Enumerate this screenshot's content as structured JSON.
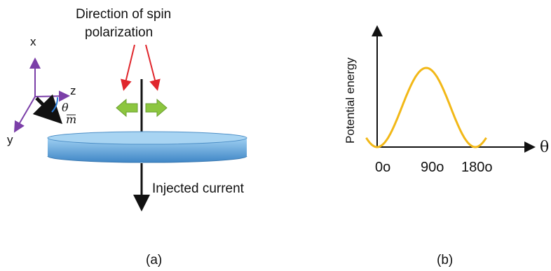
{
  "panel_a": {
    "caption": "(a)",
    "spin_label_line1": "Direction of spin",
    "spin_label_line2": "polarization",
    "axis_x": "x",
    "axis_y": "y",
    "axis_z": "z",
    "theta_symbol": "θ",
    "m_symbol": "m",
    "current_label": "Injected current",
    "colors": {
      "axes": "#7b3fa8",
      "red_arrow": "#e0262c",
      "green_arrow": "#8cc63f",
      "disk": "#5aa0d8",
      "disk_top": "#8ec6ef"
    }
  },
  "panel_b": {
    "caption": "(b)",
    "ylabel": "Potential energy",
    "xlabel": "θ",
    "tick_labels": [
      "0o",
      "90o",
      "180o"
    ],
    "curve_color": "#f2b817"
  }
}
